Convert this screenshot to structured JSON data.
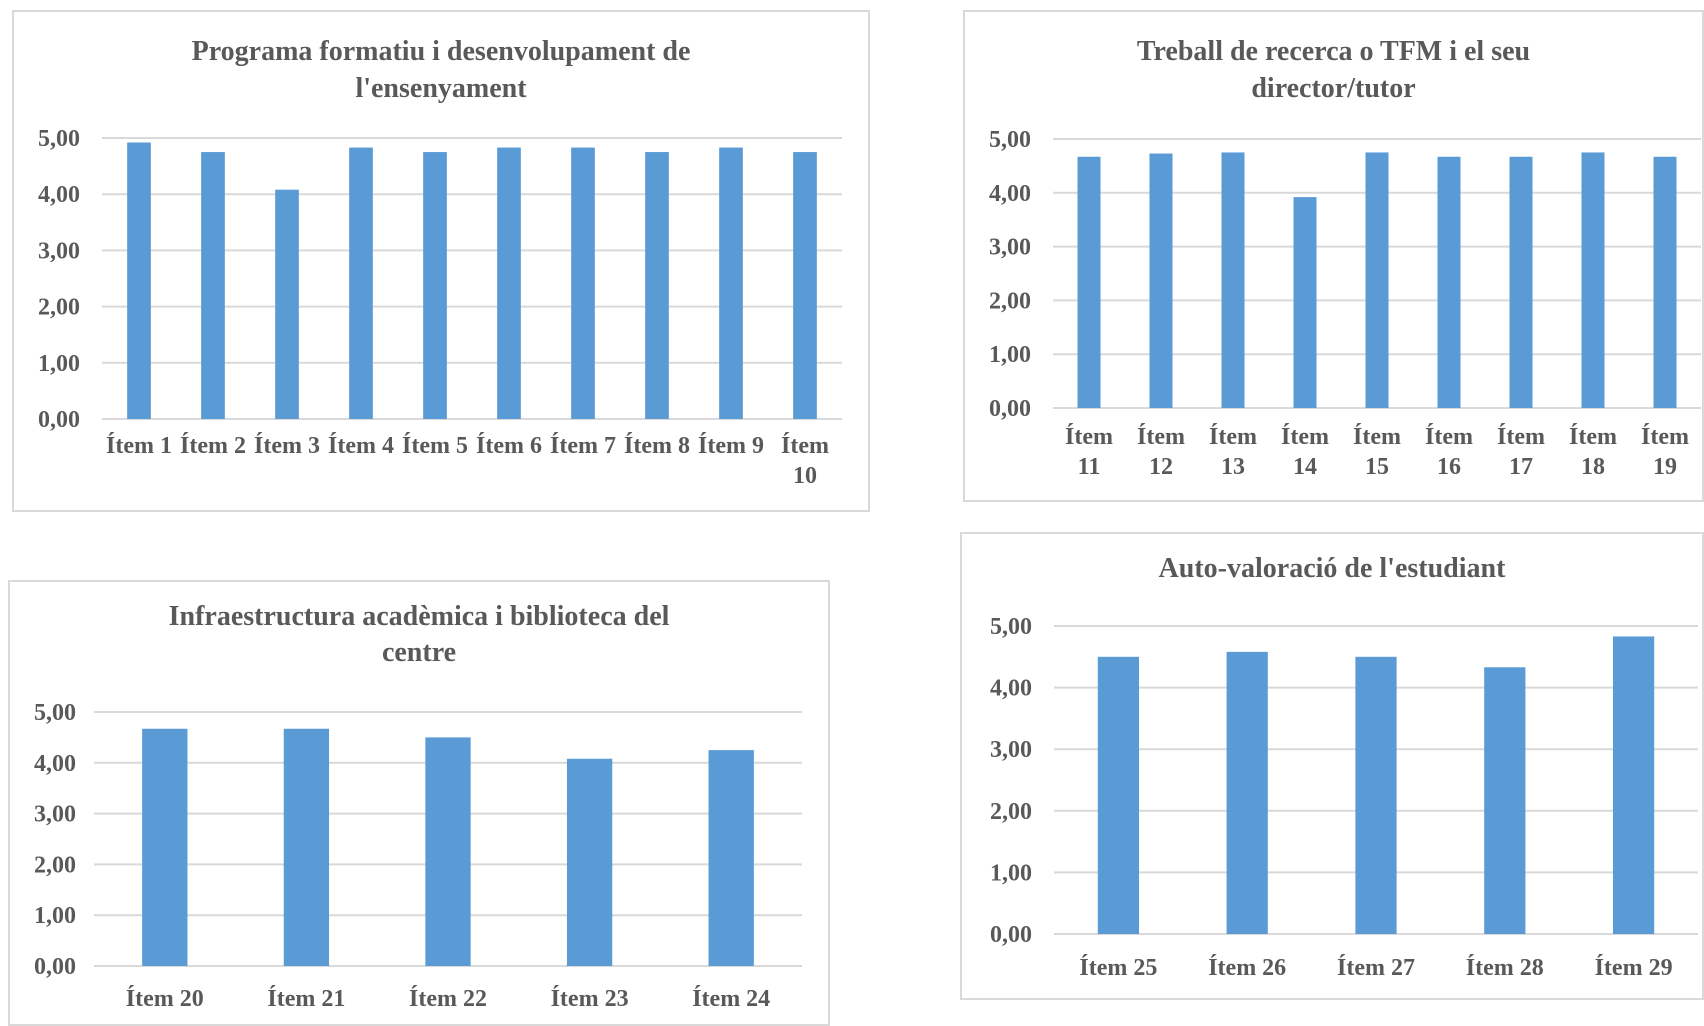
{
  "chart_data": [
    {
      "type": "bar",
      "title_lines": [
        "Programa formatiu i desenvolupament de",
        "l'ensenyament"
      ],
      "categories": [
        [
          "Ítem 1"
        ],
        [
          "Ítem 2"
        ],
        [
          "Ítem 3"
        ],
        [
          "Ítem 4"
        ],
        [
          "Ítem 5"
        ],
        [
          "Ítem 6"
        ],
        [
          "Ítem 7"
        ],
        [
          "Ítem 8"
        ],
        [
          "Ítem 9"
        ],
        [
          "Ítem",
          "10"
        ]
      ],
      "values": [
        4.92,
        4.75,
        4.08,
        4.83,
        4.75,
        4.83,
        4.83,
        4.75,
        4.83,
        4.75
      ],
      "yticks": [
        "0,00",
        "1,00",
        "2,00",
        "3,00",
        "4,00",
        "5,00"
      ],
      "ylim": [
        0,
        5
      ],
      "grid": true,
      "bar_color": "#5b9bd5"
    },
    {
      "type": "bar",
      "title_lines": [
        "Treball de recerca o TFM i el seu",
        "director/tutor"
      ],
      "categories": [
        [
          "Ítem",
          "11"
        ],
        [
          "Ítem",
          "12"
        ],
        [
          "Ítem",
          "13"
        ],
        [
          "Ítem",
          "14"
        ],
        [
          "Ítem",
          "15"
        ],
        [
          "Ítem",
          "16"
        ],
        [
          "Ítem",
          "17"
        ],
        [
          "Ítem",
          "18"
        ],
        [
          "Ítem",
          "19"
        ]
      ],
      "values": [
        4.67,
        4.73,
        4.75,
        3.92,
        4.75,
        4.67,
        4.67,
        4.75,
        4.67
      ],
      "yticks": [
        "0,00",
        "1,00",
        "2,00",
        "3,00",
        "4,00",
        "5,00"
      ],
      "ylim": [
        0,
        5
      ],
      "grid": true,
      "bar_color": "#5b9bd5"
    },
    {
      "type": "bar",
      "title_lines": [
        "Infraestructura acadèmica i biblioteca del",
        "centre"
      ],
      "categories": [
        [
          "Ítem 20"
        ],
        [
          "Ítem 21"
        ],
        [
          "Ítem 22"
        ],
        [
          "Ítem 23"
        ],
        [
          "Ítem 24"
        ]
      ],
      "values": [
        4.67,
        4.67,
        4.5,
        4.08,
        4.25
      ],
      "yticks": [
        "0,00",
        "1,00",
        "2,00",
        "3,00",
        "4,00",
        "5,00"
      ],
      "ylim": [
        0,
        5
      ],
      "grid": true,
      "bar_color": "#5b9bd5"
    },
    {
      "type": "bar",
      "title_lines": [
        "Auto-valoració de l'estudiant"
      ],
      "categories": [
        [
          "Ítem 25"
        ],
        [
          "Ítem 26"
        ],
        [
          "Ítem 27"
        ],
        [
          "Ítem 28"
        ],
        [
          "Ítem 29"
        ]
      ],
      "values": [
        4.5,
        4.58,
        4.5,
        4.33,
        4.83
      ],
      "yticks": [
        "0,00",
        "1,00",
        "2,00",
        "3,00",
        "4,00",
        "5,00"
      ],
      "ylim": [
        0,
        5
      ],
      "grid": true,
      "bar_color": "#5b9bd5"
    }
  ]
}
